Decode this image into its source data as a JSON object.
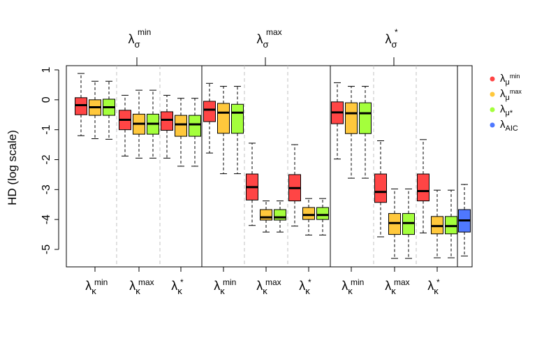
{
  "chart_data": {
    "type": "box",
    "ylabel": "HD (log scale)",
    "ylim": [
      -5.6,
      1.15
    ],
    "yticks": [
      1,
      0,
      -1,
      -2,
      -3,
      -4,
      -5
    ],
    "colors": {
      "red": "#ff4545",
      "orange": "#ffc83c",
      "green": "#a4ff3c",
      "blue": "#4f78ff"
    },
    "groups": [
      {
        "top_label": {
          "base": "λ",
          "sub": "σ",
          "sup": "min"
        },
        "subgroups": [
          {
            "label": {
              "base": "λ",
              "sub": "κ",
              "sup": "min"
            },
            "boxes": [
              {
                "color": "red",
                "whisker_low": -1.2,
                "q1": -0.5,
                "median": -0.18,
                "q3": 0.07,
                "whisker_high": 0.88
              },
              {
                "color": "orange",
                "whisker_low": -1.3,
                "q1": -0.52,
                "median": -0.25,
                "q3": 0.0,
                "whisker_high": 0.62
              },
              {
                "color": "green",
                "whisker_low": -1.32,
                "q1": -0.52,
                "median": -0.25,
                "q3": 0.02,
                "whisker_high": 0.62
              }
            ]
          },
          {
            "label": {
              "base": "λ",
              "sub": "κ",
              "sup": "max"
            },
            "boxes": [
              {
                "color": "red",
                "whisker_low": -1.88,
                "q1": -1.0,
                "median": -0.67,
                "q3": -0.35,
                "whisker_high": 0.15
              },
              {
                "color": "orange",
                "whisker_low": -1.95,
                "q1": -1.15,
                "median": -0.8,
                "q3": -0.48,
                "whisker_high": 0.32
              },
              {
                "color": "green",
                "whisker_low": -1.95,
                "q1": -1.15,
                "median": -0.8,
                "q3": -0.48,
                "whisker_high": 0.32
              }
            ]
          },
          {
            "label": {
              "base": "λ",
              "sub": "κ",
              "sup": "*"
            },
            "boxes": [
              {
                "color": "red",
                "whisker_low": -1.95,
                "q1": -1.02,
                "median": -0.67,
                "q3": -0.4,
                "whisker_high": 0.15
              },
              {
                "color": "orange",
                "whisker_low": -2.22,
                "q1": -1.22,
                "median": -0.82,
                "q3": -0.52,
                "whisker_high": 0.05
              },
              {
                "color": "green",
                "whisker_low": -2.22,
                "q1": -1.22,
                "median": -0.82,
                "q3": -0.52,
                "whisker_high": 0.05
              }
            ]
          }
        ]
      },
      {
        "top_label": {
          "base": "λ",
          "sub": "σ",
          "sup": "max"
        },
        "subgroups": [
          {
            "label": {
              "base": "λ",
              "sub": "κ",
              "sup": "min"
            },
            "boxes": [
              {
                "color": "red",
                "whisker_low": -1.78,
                "q1": -0.73,
                "median": -0.33,
                "q3": -0.05,
                "whisker_high": 0.55
              },
              {
                "color": "orange",
                "whisker_low": -2.47,
                "q1": -1.12,
                "median": -0.43,
                "q3": -0.12,
                "whisker_high": 0.45
              },
              {
                "color": "green",
                "whisker_low": -2.47,
                "q1": -1.12,
                "median": -0.43,
                "q3": -0.15,
                "whisker_high": 0.45
              }
            ]
          },
          {
            "label": {
              "base": "λ",
              "sub": "κ",
              "sup": "max"
            },
            "boxes": [
              {
                "color": "red",
                "whisker_low": -4.2,
                "q1": -3.35,
                "median": -2.92,
                "q3": -2.48,
                "whisker_high": -1.45
              },
              {
                "color": "orange",
                "whisker_low": -4.42,
                "q1": -4.02,
                "median": -3.93,
                "q3": -3.67,
                "whisker_high": -3.38
              },
              {
                "color": "green",
                "whisker_low": -4.42,
                "q1": -4.02,
                "median": -3.93,
                "q3": -3.67,
                "whisker_high": -3.38
              }
            ]
          },
          {
            "label": {
              "base": "λ",
              "sub": "κ",
              "sup": "*"
            },
            "boxes": [
              {
                "color": "red",
                "whisker_low": -4.22,
                "q1": -3.38,
                "median": -2.95,
                "q3": -2.5,
                "whisker_high": -1.5
              },
              {
                "color": "orange",
                "whisker_low": -4.52,
                "q1": -4.0,
                "median": -3.85,
                "q3": -3.6,
                "whisker_high": -3.3
              },
              {
                "color": "green",
                "whisker_low": -4.52,
                "q1": -4.0,
                "median": -3.85,
                "q3": -3.6,
                "whisker_high": -3.3
              }
            ]
          }
        ]
      },
      {
        "top_label": {
          "base": "λ",
          "sub": "σ",
          "sup": "*"
        },
        "subgroups": [
          {
            "label": {
              "base": "λ",
              "sub": "κ",
              "sup": "min"
            },
            "boxes": [
              {
                "color": "red",
                "whisker_low": -1.98,
                "q1": -0.8,
                "median": -0.42,
                "q3": -0.07,
                "whisker_high": 0.57
              },
              {
                "color": "orange",
                "whisker_low": -2.62,
                "q1": -1.13,
                "median": -0.45,
                "q3": -0.1,
                "whisker_high": 0.45
              },
              {
                "color": "green",
                "whisker_low": -2.62,
                "q1": -1.13,
                "median": -0.45,
                "q3": -0.1,
                "whisker_high": 0.45
              }
            ]
          },
          {
            "label": {
              "base": "λ",
              "sub": "κ",
              "sup": "max"
            },
            "boxes": [
              {
                "color": "red",
                "whisker_low": -4.58,
                "q1": -3.43,
                "median": -3.08,
                "q3": -2.48,
                "whisker_high": -1.37
              },
              {
                "color": "orange",
                "whisker_low": -5.3,
                "q1": -4.5,
                "median": -4.12,
                "q3": -3.8,
                "whisker_high": -2.98
              },
              {
                "color": "green",
                "whisker_low": -5.3,
                "q1": -4.5,
                "median": -4.12,
                "q3": -3.8,
                "whisker_high": -2.98
              }
            ]
          },
          {
            "label": {
              "base": "λ",
              "sub": "κ",
              "sup": "*"
            },
            "boxes": [
              {
                "color": "red",
                "whisker_low": -4.45,
                "q1": -3.38,
                "median": -3.05,
                "q3": -2.48,
                "whisker_high": -1.33
              },
              {
                "color": "orange",
                "whisker_low": -5.28,
                "q1": -4.48,
                "median": -4.22,
                "q3": -3.9,
                "whisker_high": -3.02
              },
              {
                "color": "green",
                "whisker_low": -5.28,
                "q1": -4.48,
                "median": -4.22,
                "q3": -3.9,
                "whisker_high": -3.02
              }
            ]
          }
        ]
      }
    ],
    "aic_box": {
      "color": "blue",
      "whisker_low": -5.22,
      "q1": -4.42,
      "median": -4.03,
      "q3": -3.67,
      "whisker_high": -2.83
    },
    "legend": [
      {
        "color": "red",
        "base": "λ",
        "sub": "μ",
        "sup": "min"
      },
      {
        "color": "orange",
        "base": "λ",
        "sub": "μ",
        "sup": "max"
      },
      {
        "color": "green",
        "base": "λ",
        "sub": "μ*",
        "sup": ""
      },
      {
        "color": "blue",
        "base": "λ",
        "sub": "AIC",
        "sup": ""
      }
    ],
    "legend_position": "top-right"
  }
}
